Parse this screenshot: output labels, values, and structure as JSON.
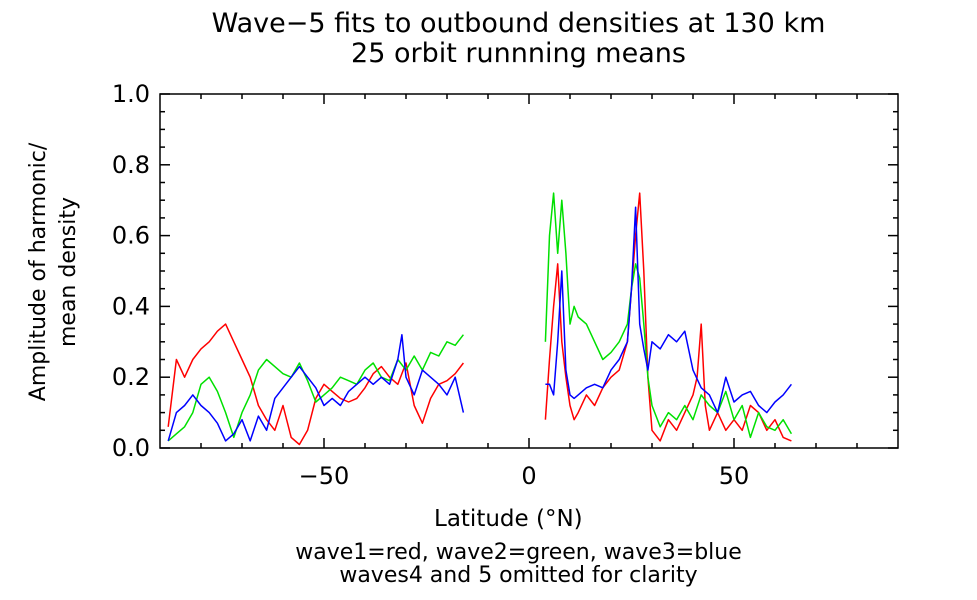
{
  "title": [
    "Wave−5 fits to outbound densities at 130 km",
    "25 orbit runnning means"
  ],
  "xlabel": "Latitude (°N)",
  "ylabel": [
    "Amplitude of harmonic/",
    "mean density"
  ],
  "caption": [
    "wave1=red, wave2=green, wave3=blue",
    "waves4 and 5 omitted for clarity"
  ],
  "colors": {
    "wave1": "#ff0000",
    "wave2": "#00e000",
    "wave3": "#0000ff"
  },
  "chart_data": {
    "type": "line",
    "title": "Wave−5 fits to outbound densities at 130 km / 25 orbit runnning means",
    "xlabel": "Latitude (°N)",
    "ylabel": "Amplitude of harmonic/ mean density",
    "xlim": [
      -90,
      90
    ],
    "ylim": [
      0.0,
      1.0
    ],
    "xticks": [
      -50,
      0,
      50
    ],
    "yticks": [
      0.0,
      0.2,
      0.4,
      0.6,
      0.8,
      1.0
    ],
    "xtick_labels": [
      "−50",
      "0",
      "50"
    ],
    "ytick_labels": [
      "0.0",
      "0.2",
      "0.4",
      "0.6",
      "0.8",
      "1.0"
    ],
    "grid": false,
    "legend": "none",
    "series": [
      {
        "color": "red",
        "segments": [
          {
            "x": [
              -88,
              -86,
              -84,
              -82,
              -80,
              -78,
              -76,
              -74,
              -72,
              -70,
              -68,
              -66,
              -64,
              -62,
              -60,
              -58,
              -56,
              -54,
              -52,
              -50,
              -48,
              -46,
              -44,
              -42,
              -40,
              -38,
              -36,
              -34,
              -32,
              -30,
              -28,
              -26,
              -24,
              -22,
              -20,
              -18,
              -16
            ],
            "y": [
              0.06,
              0.25,
              0.2,
              0.25,
              0.28,
              0.3,
              0.33,
              0.35,
              0.3,
              0.25,
              0.2,
              0.12,
              0.08,
              0.05,
              0.12,
              0.03,
              0.01,
              0.05,
              0.14,
              0.18,
              0.16,
              0.14,
              0.13,
              0.14,
              0.17,
              0.21,
              0.23,
              0.2,
              0.18,
              0.24,
              0.12,
              0.07,
              0.14,
              0.18,
              0.19,
              0.21,
              0.24
            ]
          },
          {
            "x": [
              4,
              5,
              6,
              7,
              8,
              9,
              10,
              11,
              12,
              14,
              16,
              18,
              20,
              22,
              24,
              25,
              26,
              27,
              28,
              29,
              30,
              32,
              34,
              36,
              38,
              40,
              41,
              42,
              43,
              44,
              46,
              48,
              50,
              52,
              54,
              56,
              58,
              60,
              62,
              64
            ],
            "y": [
              0.08,
              0.25,
              0.4,
              0.52,
              0.3,
              0.2,
              0.12,
              0.08,
              0.1,
              0.15,
              0.12,
              0.17,
              0.2,
              0.22,
              0.3,
              0.45,
              0.6,
              0.72,
              0.5,
              0.2,
              0.05,
              0.02,
              0.08,
              0.05,
              0.1,
              0.15,
              0.2,
              0.35,
              0.12,
              0.05,
              0.1,
              0.05,
              0.08,
              0.05,
              0.12,
              0.1,
              0.05,
              0.08,
              0.03,
              0.02
            ]
          }
        ]
      },
      {
        "color": "green",
        "segments": [
          {
            "x": [
              -88,
              -86,
              -84,
              -82,
              -80,
              -78,
              -76,
              -74,
              -72,
              -70,
              -68,
              -66,
              -64,
              -62,
              -60,
              -58,
              -56,
              -54,
              -52,
              -50,
              -48,
              -46,
              -44,
              -42,
              -40,
              -38,
              -36,
              -34,
              -32,
              -30,
              -28,
              -26,
              -24,
              -22,
              -20,
              -18,
              -16
            ],
            "y": [
              0.02,
              0.04,
              0.06,
              0.1,
              0.18,
              0.2,
              0.16,
              0.1,
              0.03,
              0.1,
              0.15,
              0.22,
              0.25,
              0.23,
              0.21,
              0.2,
              0.24,
              0.19,
              0.13,
              0.15,
              0.17,
              0.2,
              0.19,
              0.18,
              0.22,
              0.24,
              0.2,
              0.19,
              0.25,
              0.22,
              0.26,
              0.22,
              0.27,
              0.26,
              0.3,
              0.29,
              0.32
            ]
          },
          {
            "x": [
              4,
              5,
              6,
              7,
              8,
              9,
              10,
              11,
              12,
              14,
              16,
              18,
              20,
              22,
              24,
              25,
              26,
              27,
              28,
              29,
              30,
              32,
              34,
              36,
              38,
              40,
              42,
              44,
              46,
              48,
              50,
              52,
              54,
              56,
              58,
              60,
              62,
              64
            ],
            "y": [
              0.3,
              0.6,
              0.72,
              0.55,
              0.7,
              0.55,
              0.35,
              0.4,
              0.37,
              0.35,
              0.3,
              0.25,
              0.27,
              0.3,
              0.35,
              0.45,
              0.52,
              0.48,
              0.35,
              0.2,
              0.12,
              0.06,
              0.1,
              0.08,
              0.12,
              0.08,
              0.15,
              0.12,
              0.1,
              0.16,
              0.08,
              0.12,
              0.03,
              0.1,
              0.06,
              0.05,
              0.08,
              0.04
            ]
          }
        ]
      },
      {
        "color": "blue",
        "segments": [
          {
            "x": [
              -88,
              -86,
              -84,
              -82,
              -80,
              -78,
              -76,
              -74,
              -72,
              -70,
              -68,
              -66,
              -64,
              -62,
              -60,
              -58,
              -56,
              -54,
              -52,
              -50,
              -48,
              -46,
              -44,
              -42,
              -40,
              -38,
              -36,
              -34,
              -32,
              -31,
              -30,
              -28,
              -26,
              -24,
              -22,
              -20,
              -18,
              -16
            ],
            "y": [
              0.02,
              0.1,
              0.12,
              0.15,
              0.12,
              0.1,
              0.07,
              0.02,
              0.04,
              0.08,
              0.02,
              0.09,
              0.05,
              0.14,
              0.17,
              0.2,
              0.23,
              0.2,
              0.17,
              0.12,
              0.14,
              0.12,
              0.16,
              0.18,
              0.2,
              0.18,
              0.2,
              0.18,
              0.25,
              0.32,
              0.2,
              0.15,
              0.22,
              0.2,
              0.18,
              0.15,
              0.2,
              0.1
            ]
          },
          {
            "x": [
              4,
              5,
              6,
              7,
              8,
              9,
              10,
              11,
              12,
              14,
              16,
              18,
              20,
              22,
              24,
              25,
              26,
              27,
              28,
              29,
              30,
              32,
              34,
              36,
              38,
              40,
              42,
              44,
              46,
              48,
              50,
              52,
              54,
              56,
              58,
              60,
              62,
              64
            ],
            "y": [
              0.18,
              0.18,
              0.15,
              0.3,
              0.5,
              0.22,
              0.15,
              0.14,
              0.15,
              0.17,
              0.18,
              0.17,
              0.22,
              0.25,
              0.3,
              0.45,
              0.68,
              0.35,
              0.28,
              0.22,
              0.3,
              0.28,
              0.32,
              0.3,
              0.33,
              0.22,
              0.17,
              0.15,
              0.1,
              0.2,
              0.13,
              0.15,
              0.16,
              0.12,
              0.1,
              0.13,
              0.15,
              0.18
            ]
          }
        ]
      }
    ]
  }
}
